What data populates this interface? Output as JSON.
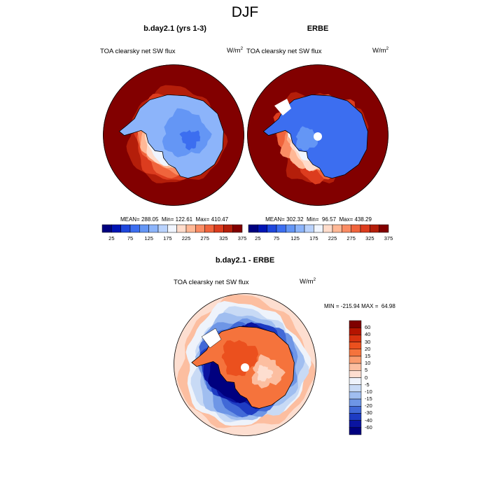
{
  "figure_title": "DJF",
  "panels": [
    {
      "title": "b.day2.1 (yrs 1-3)",
      "variable": "TOA clearsky net SW flux",
      "units_base": "W/m",
      "units_exp": "2",
      "stats_text": "MEAN= 288.05  Min= 122.61  Max= 410.47"
    },
    {
      "title": "ERBE",
      "variable": "TOA clearsky net SW flux",
      "units_base": "W/m",
      "units_exp": "2",
      "stats_text": "MEAN= 302.32  Min=  96.57  Max= 438.29"
    },
    {
      "title": "b.day2.1 - ERBE",
      "variable": "TOA clearsky net SW flux",
      "units_base": "W/m",
      "units_exp": "2",
      "stats_text": "MIN = -215.94 MAX =  64.98"
    }
  ],
  "chart_data": [
    {
      "type": "heatmap",
      "projection": "south-polar-stereographic",
      "title": "b.day2.1 (yrs 1-3)",
      "field": "TOA clearsky net SW flux",
      "units": "W/m2",
      "mean": 288.05,
      "min": 122.61,
      "max": 410.47,
      "contour_levels": [
        25,
        50,
        75,
        100,
        125,
        150,
        175,
        200,
        225,
        250,
        275,
        300,
        325,
        350,
        375
      ],
      "colorbar_tick_labels": [
        "25",
        "75",
        "125",
        "175",
        "225",
        "275",
        "325",
        "375"
      ]
    },
    {
      "type": "heatmap",
      "projection": "south-polar-stereographic",
      "title": "ERBE",
      "field": "TOA clearsky net SW flux",
      "units": "W/m2",
      "mean": 302.32,
      "min": 96.57,
      "max": 438.29,
      "contour_levels": [
        25,
        50,
        75,
        100,
        125,
        150,
        175,
        200,
        225,
        250,
        275,
        300,
        325,
        350,
        375
      ],
      "colorbar_tick_labels": [
        "25",
        "75",
        "125",
        "175",
        "225",
        "275",
        "325",
        "375"
      ]
    },
    {
      "type": "heatmap",
      "projection": "south-polar-stereographic",
      "title": "b.day2.1 - ERBE",
      "field": "TOA clearsky net SW flux",
      "units": "W/m2",
      "min": -215.94,
      "max": 64.98,
      "contour_levels": [
        -60,
        -40,
        -30,
        -20,
        -15,
        -10,
        -5,
        0,
        5,
        10,
        15,
        20,
        30,
        40,
        60
      ],
      "colorbar_tick_labels": [
        "60",
        "40",
        "30",
        "20",
        "15",
        "10",
        "5",
        "0",
        "-5",
        "-10",
        "-15",
        "-20",
        "-30",
        "-40",
        "-60"
      ]
    }
  ],
  "colors": {
    "abs_scale": [
      "#00007f",
      "#0014b4",
      "#1e46dc",
      "#3c6ef0",
      "#6496f5",
      "#8cb4fa",
      "#b9d2fc",
      "#f0f5ff",
      "#ffdccb",
      "#ffb896",
      "#fa8c64",
      "#f0643c",
      "#dc3c1e",
      "#b41e0a",
      "#820000"
    ],
    "diff_scale_top_to_bottom": [
      "#7f0000",
      "#b41400",
      "#d7320f",
      "#eb501e",
      "#f5733c",
      "#fa9b6e",
      "#fcbea0",
      "#fdded0",
      "#eef3fb",
      "#c8daf5",
      "#a0bef0",
      "#6e96e6",
      "#4169d7",
      "#1e3cc3",
      "#0a14a0",
      "#00007f"
    ],
    "land_white": "#ffffff"
  }
}
